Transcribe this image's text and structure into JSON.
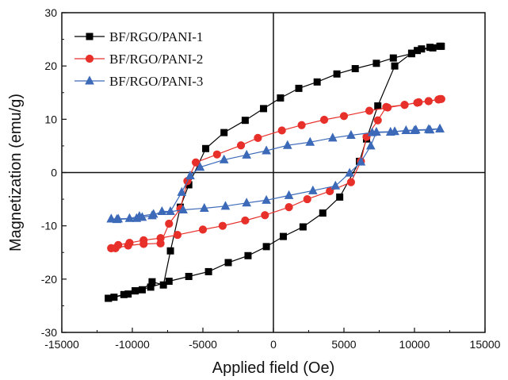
{
  "chart_data": {
    "type": "scatter",
    "xlabel": "Applied field (Oe)",
    "ylabel": "Magnetization (emu/g)",
    "xlim": [
      -15000,
      15000
    ],
    "ylim": [
      -30,
      30
    ],
    "xticks": [
      -15000,
      -10000,
      -5000,
      0,
      5000,
      10000,
      15000
    ],
    "yticks": [
      -30,
      -20,
      -10,
      0,
      10,
      20,
      30
    ],
    "xtick_labels": [
      "-15000",
      "-10000",
      "-5000",
      "0",
      "5000",
      "10000",
      "15000"
    ],
    "ytick_labels": [
      "-30",
      "-20",
      "-10",
      "0",
      "10",
      "20",
      "30"
    ],
    "reference_lines": {
      "x": 0,
      "y": 0
    },
    "legend_position": "top-left",
    "series": [
      {
        "name": "BF/RGO/PANI-1",
        "color": "#000000",
        "marker": "square",
        "points": [
          [
            -11700,
            -23.6
          ],
          [
            -11300,
            -23.4
          ],
          [
            -10300,
            -22.8
          ],
          [
            -9800,
            -22.2
          ],
          [
            -9300,
            -22.0
          ],
          [
            -8600,
            -20.5
          ],
          [
            -7800,
            -21.1
          ],
          [
            -7300,
            -14.7
          ],
          [
            -6600,
            -6.5
          ],
          [
            -6000,
            -2.3
          ],
          [
            -4800,
            4.5
          ],
          [
            -3500,
            7.5
          ],
          [
            -2000,
            9.8
          ],
          [
            -700,
            12.0
          ],
          [
            500,
            14.0
          ],
          [
            1800,
            15.8
          ],
          [
            3100,
            17.0
          ],
          [
            4500,
            18.5
          ],
          [
            5800,
            19.5
          ],
          [
            7300,
            20.5
          ],
          [
            8500,
            21.5
          ],
          [
            9800,
            22.3
          ],
          [
            10500,
            23.2
          ],
          [
            11100,
            23.5
          ],
          [
            11800,
            23.7
          ],
          [
            11900,
            23.7
          ],
          [
            11300,
            23.4
          ],
          [
            10200,
            22.9
          ],
          [
            9800,
            22.4
          ],
          [
            8600,
            20.0
          ],
          [
            7400,
            12.5
          ],
          [
            6600,
            6.3
          ],
          [
            6100,
            2.1
          ],
          [
            4700,
            -4.6
          ],
          [
            3500,
            -7.6
          ],
          [
            2100,
            -10.2
          ],
          [
            700,
            -12.0
          ],
          [
            -500,
            -13.9
          ],
          [
            -1800,
            -15.6
          ],
          [
            -3200,
            -16.9
          ],
          [
            -4600,
            -18.6
          ],
          [
            -6000,
            -19.5
          ],
          [
            -7400,
            -20.4
          ],
          [
            -8700,
            -21.5
          ],
          [
            -9800,
            -22.2
          ],
          [
            -10600,
            -22.9
          ],
          [
            -11700,
            -23.6
          ]
        ]
      },
      {
        "name": "BF/RGO/PANI-2",
        "color": "#e8302a",
        "marker": "circle",
        "points": [
          [
            -11500,
            -14.2
          ],
          [
            -11200,
            -14.2
          ],
          [
            -10300,
            -13.7
          ],
          [
            -9200,
            -13.4
          ],
          [
            -8000,
            -13.3
          ],
          [
            -7400,
            -9.6
          ],
          [
            -6600,
            -6.8
          ],
          [
            -6100,
            -1.6
          ],
          [
            -5500,
            1.9
          ],
          [
            -4000,
            3.4
          ],
          [
            -2300,
            5.1
          ],
          [
            -1100,
            6.5
          ],
          [
            600,
            7.9
          ],
          [
            2000,
            8.9
          ],
          [
            3600,
            9.9
          ],
          [
            5000,
            10.6
          ],
          [
            6800,
            11.6
          ],
          [
            8100,
            12.2
          ],
          [
            9300,
            12.7
          ],
          [
            10300,
            13.2
          ],
          [
            11000,
            13.4
          ],
          [
            11700,
            13.7
          ],
          [
            11900,
            13.8
          ],
          [
            11800,
            13.8
          ],
          [
            11000,
            13.4
          ],
          [
            10200,
            13.1
          ],
          [
            9300,
            12.7
          ],
          [
            8000,
            12.3
          ],
          [
            7400,
            9.8
          ],
          [
            6600,
            6.7
          ],
          [
            6200,
            2.1
          ],
          [
            5500,
            -1.8
          ],
          [
            4000,
            -3.5
          ],
          [
            2400,
            -5.0
          ],
          [
            1100,
            -6.5
          ],
          [
            -600,
            -8.0
          ],
          [
            -2000,
            -9.0
          ],
          [
            -3600,
            -10.0
          ],
          [
            -5000,
            -10.7
          ],
          [
            -6800,
            -11.7
          ],
          [
            -8000,
            -12.3
          ],
          [
            -9200,
            -12.7
          ],
          [
            -10200,
            -13.2
          ],
          [
            -11000,
            -13.6
          ],
          [
            -11500,
            -14.2
          ]
        ]
      },
      {
        "name": "BF/RGO/PANI-3",
        "color": "#3c6ab8",
        "marker": "triangle",
        "points": [
          [
            -11500,
            -8.7
          ],
          [
            -11100,
            -8.8
          ],
          [
            -9700,
            -8.6
          ],
          [
            -9300,
            -8.4
          ],
          [
            -8600,
            -8.1
          ],
          [
            -7900,
            -7.3
          ],
          [
            -7300,
            -7.3
          ],
          [
            -6500,
            -3.7
          ],
          [
            -5900,
            -0.6
          ],
          [
            -5200,
            1.0
          ],
          [
            -3500,
            2.4
          ],
          [
            -1900,
            3.3
          ],
          [
            -500,
            4.1
          ],
          [
            1000,
            5.1
          ],
          [
            2600,
            5.7
          ],
          [
            4200,
            6.5
          ],
          [
            5500,
            7.0
          ],
          [
            7000,
            7.5
          ],
          [
            8300,
            7.6
          ],
          [
            9400,
            7.9
          ],
          [
            10100,
            8.0
          ],
          [
            11000,
            8.1
          ],
          [
            11800,
            8.2
          ],
          [
            11800,
            8.2
          ],
          [
            11100,
            8.0
          ],
          [
            10000,
            7.9
          ],
          [
            8600,
            7.7
          ],
          [
            7300,
            7.6
          ],
          [
            6900,
            5.0
          ],
          [
            6200,
            2.0
          ],
          [
            5400,
            -0.1
          ],
          [
            4400,
            -2.5
          ],
          [
            2800,
            -3.4
          ],
          [
            1100,
            -4.3
          ],
          [
            -500,
            -5.2
          ],
          [
            -1900,
            -5.7
          ],
          [
            -3400,
            -6.3
          ],
          [
            -4900,
            -6.7
          ],
          [
            -6400,
            -7.0
          ],
          [
            -8500,
            -7.8
          ],
          [
            -9500,
            -8.2
          ],
          [
            -10200,
            -8.6
          ],
          [
            -11000,
            -8.7
          ],
          [
            -11500,
            -8.7
          ]
        ]
      }
    ]
  }
}
